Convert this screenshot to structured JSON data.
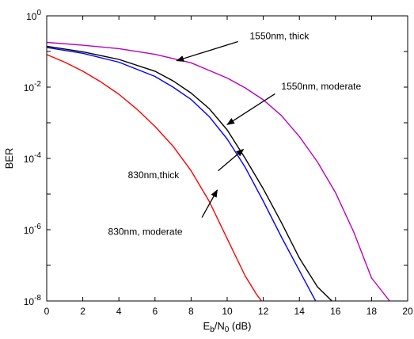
{
  "chart_data": {
    "type": "line",
    "xlabel": {
      "main": "E",
      "sub1": "b",
      "mid": "/N",
      "sub2": "0",
      "tail": " (dB)"
    },
    "ylabel": "BER",
    "xlim": [
      0,
      20
    ],
    "ylim": [
      1e-08,
      1
    ],
    "yscale": "log",
    "grid": false,
    "x_ticks": [
      "0",
      "2",
      "4",
      "6",
      "8",
      "10",
      "12",
      "14",
      "16",
      "18",
      "20"
    ],
    "y_ticks": [
      {
        "value": 1,
        "base": "10",
        "exp": "0"
      },
      {
        "value": 0.01,
        "base": "10",
        "exp": "-2"
      },
      {
        "value": 0.0001,
        "base": "10",
        "exp": "-4"
      },
      {
        "value": 1e-06,
        "base": "10",
        "exp": "-6"
      },
      {
        "value": 1e-08,
        "base": "10",
        "exp": "-8"
      }
    ],
    "series": [
      {
        "label": "1550nm, thick",
        "color": "#bb00bb",
        "points": [
          [
            0,
            0.18
          ],
          [
            2,
            0.15
          ],
          [
            4,
            0.12
          ],
          [
            6,
            0.083
          ],
          [
            8,
            0.048
          ],
          [
            10,
            0.018
          ],
          [
            11,
            0.0095
          ],
          [
            12,
            0.0044
          ],
          [
            13,
            0.0016
          ],
          [
            14,
            0.00041
          ],
          [
            15,
            8e-05
          ],
          [
            16,
            1.1e-05
          ],
          [
            17,
            8.9e-07
          ],
          [
            18,
            4.4e-08
          ],
          [
            19,
            1e-08
          ]
        ]
      },
      {
        "label": "1550nm, moderate",
        "color": "#000000",
        "points": [
          [
            0,
            0.14
          ],
          [
            2,
            0.098
          ],
          [
            4,
            0.06
          ],
          [
            6,
            0.028
          ],
          [
            7,
            0.015
          ],
          [
            8,
            0.0068
          ],
          [
            9,
            0.0025
          ],
          [
            10,
            0.00063
          ],
          [
            11,
            0.0001
          ],
          [
            12,
            1.4e-05
          ],
          [
            13,
            1.6e-06
          ],
          [
            14,
            1.6e-07
          ],
          [
            15,
            2.5e-08
          ],
          [
            15.8,
            1e-08
          ]
        ]
      },
      {
        "label": "830nm,thick",
        "color": "#0000ff",
        "points": [
          [
            0,
            0.13
          ],
          [
            2,
            0.089
          ],
          [
            4,
            0.05
          ],
          [
            6,
            0.02
          ],
          [
            7,
            0.01
          ],
          [
            8,
            0.0045
          ],
          [
            9,
            0.0015
          ],
          [
            10,
            0.00035
          ],
          [
            11,
            5.6e-05
          ],
          [
            12,
            6.3e-06
          ],
          [
            13,
            6.3e-07
          ],
          [
            14,
            7.1e-08
          ],
          [
            14.9,
            1e-08
          ]
        ]
      },
      {
        "label": "830nm, moderate",
        "color": "#ff0000",
        "points": [
          [
            0,
            0.082
          ],
          [
            1,
            0.05
          ],
          [
            2,
            0.028
          ],
          [
            3,
            0.014
          ],
          [
            4,
            0.0063
          ],
          [
            5,
            0.0024
          ],
          [
            6,
            0.00079
          ],
          [
            7,
            0.00022
          ],
          [
            8,
            4.5e-05
          ],
          [
            9,
            6.3e-06
          ],
          [
            10,
            5.6e-07
          ],
          [
            11,
            5e-08
          ],
          [
            11.6,
            1.6e-08
          ],
          [
            11.9,
            1e-08
          ]
        ]
      }
    ],
    "annotations": [
      {
        "text": "1550nm, thick",
        "text_at": [
          11.25,
          0.22
        ],
        "arrow_from": [
          10.6,
          0.19
        ],
        "arrow_to": [
          7.2,
          0.055
        ]
      },
      {
        "text": "1550nm, moderate",
        "text_at": [
          13.0,
          0.0085
        ],
        "arrow_from": [
          12.65,
          0.0065
        ],
        "arrow_to": [
          10.0,
          0.00089
        ]
      },
      {
        "text": "830nm,thick",
        "text_at": [
          4.5,
          2.8e-05
        ],
        "arrow_from": [
          9.5,
          4.5e-05
        ],
        "arrow_to": [
          10.9,
          0.00018
        ]
      },
      {
        "text": "830nm, moderate",
        "text_at": [
          3.4,
          7.1e-07
        ],
        "arrow_from": [
          8.6,
          2.2e-06
        ],
        "arrow_to": [
          9.45,
          1.3e-05
        ]
      }
    ]
  }
}
